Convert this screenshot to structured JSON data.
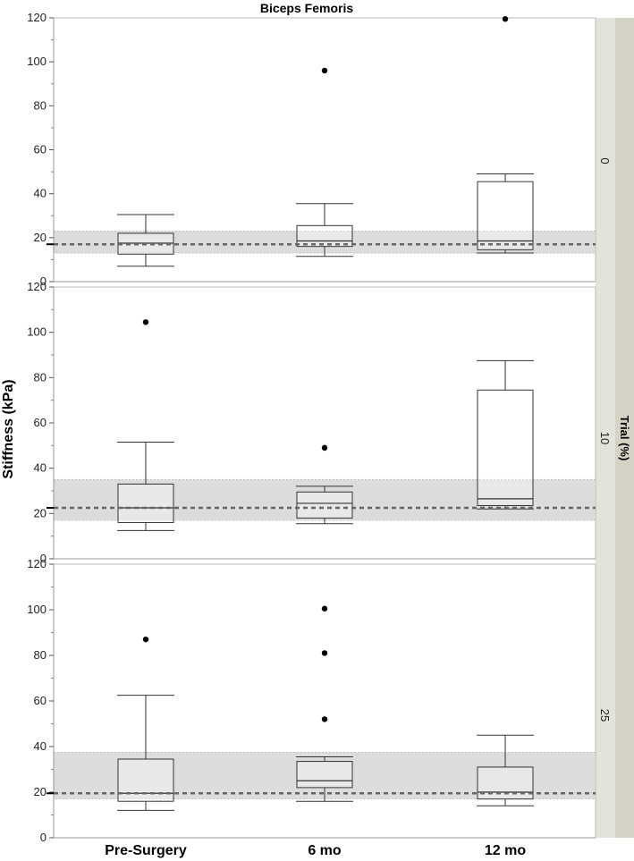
{
  "chart_data": {
    "type": "box",
    "title": "Biceps Femoris",
    "ylabel": "Stiffness (kPa)",
    "facet_label": "Trial (%)",
    "categories": [
      "Pre-Surgery",
      "6 mo",
      "12 mo"
    ],
    "ylim": [
      0,
      120
    ],
    "yticks": [
      "0",
      "20",
      "40",
      "60",
      "80",
      "100",
      "120"
    ],
    "panels": [
      {
        "facet": "0",
        "reference": {
          "mean": 17,
          "band": [
            13,
            23
          ]
        },
        "boxes": [
          {
            "whisker_low": 7,
            "q1": 12.5,
            "median": 17.5,
            "q3": 22,
            "whisker_high": 30.5,
            "outliers": []
          },
          {
            "whisker_low": 11.5,
            "q1": 16,
            "median": 18.5,
            "q3": 25.5,
            "whisker_high": 35.5,
            "outliers": [
              96
            ]
          },
          {
            "whisker_low": 13,
            "q1": 14.5,
            "median": 18.5,
            "q3": 45.5,
            "whisker_high": 49,
            "outliers": [
              119.5
            ]
          }
        ]
      },
      {
        "facet": "10",
        "reference": {
          "mean": 22.5,
          "band": [
            17,
            35
          ]
        },
        "boxes": [
          {
            "whisker_low": 12.5,
            "q1": 16,
            "median": 22.5,
            "q3": 33,
            "whisker_high": 51.5,
            "outliers": [
              104.5
            ]
          },
          {
            "whisker_low": 15.5,
            "q1": 18,
            "median": 24.5,
            "q3": 29.5,
            "whisker_high": 32,
            "outliers": [
              49
            ]
          },
          {
            "whisker_low": 22,
            "q1": 23.5,
            "median": 26.5,
            "q3": 74.5,
            "whisker_high": 87.5,
            "outliers": []
          }
        ]
      },
      {
        "facet": "25",
        "reference": {
          "mean": 19.5,
          "band": [
            17,
            37.5
          ]
        },
        "boxes": [
          {
            "whisker_low": 12,
            "q1": 16,
            "median": 19.5,
            "q3": 34.5,
            "whisker_high": 62.5,
            "outliers": [
              87
            ]
          },
          {
            "whisker_low": 16,
            "q1": 22,
            "median": 25,
            "q3": 33.5,
            "whisker_high": 35.5,
            "outliers": [
              52,
              81,
              100.5
            ]
          },
          {
            "whisker_low": 14,
            "q1": 17,
            "median": 20,
            "q3": 31,
            "whisker_high": 45,
            "outliers": []
          }
        ]
      }
    ]
  },
  "colors": {
    "band": "#dcdcdc",
    "reference_line": "#666666",
    "facet_strip": "#e4e3d9",
    "facet_strip_outer": "#d4d3c6",
    "axis": "#999999"
  }
}
